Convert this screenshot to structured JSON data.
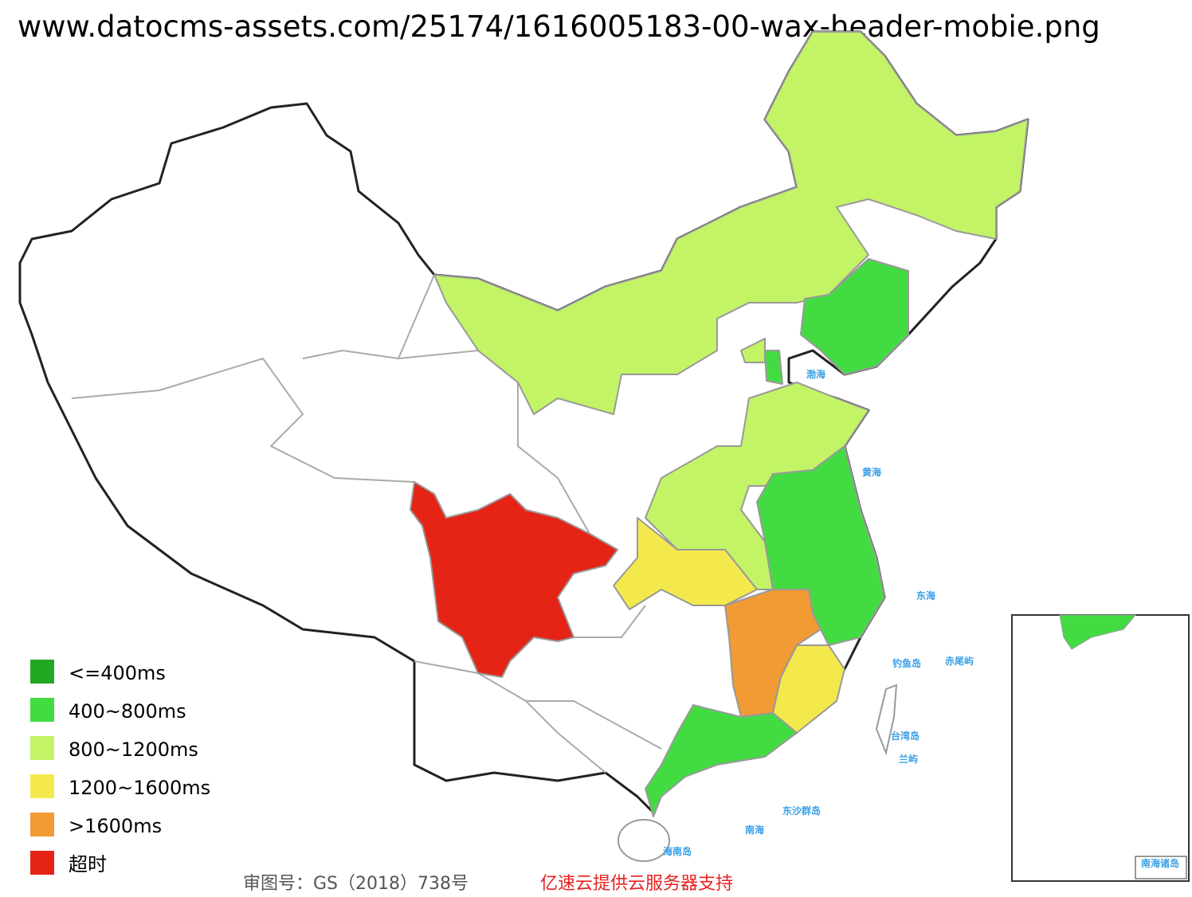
{
  "header": {
    "title": "www.datocms-assets.com/25174/1616005183-00-wax-header-mobie.png"
  },
  "legend": {
    "items": [
      {
        "label": "<=400ms",
        "color": "#23a824"
      },
      {
        "label": "400~800ms",
        "color": "#42dc42"
      },
      {
        "label": "800~1200ms",
        "color": "#c2f466"
      },
      {
        "label": "1200~1600ms",
        "color": "#f4e94c"
      },
      {
        "label": ">1600ms",
        "color": "#f29a34"
      },
      {
        "label": "超时",
        "color": "#e52416"
      }
    ]
  },
  "map_labels": [
    "渤海",
    "黄海",
    "东海",
    "南海",
    "台湾岛",
    "海南岛",
    "东沙群岛",
    "钓鱼岛",
    "赤尾屿",
    "兰屿",
    "南海诸岛"
  ],
  "footer": {
    "approval": "审图号：GS（2018）738号",
    "sponsor": "亿速云提供云服务器支持"
  }
}
